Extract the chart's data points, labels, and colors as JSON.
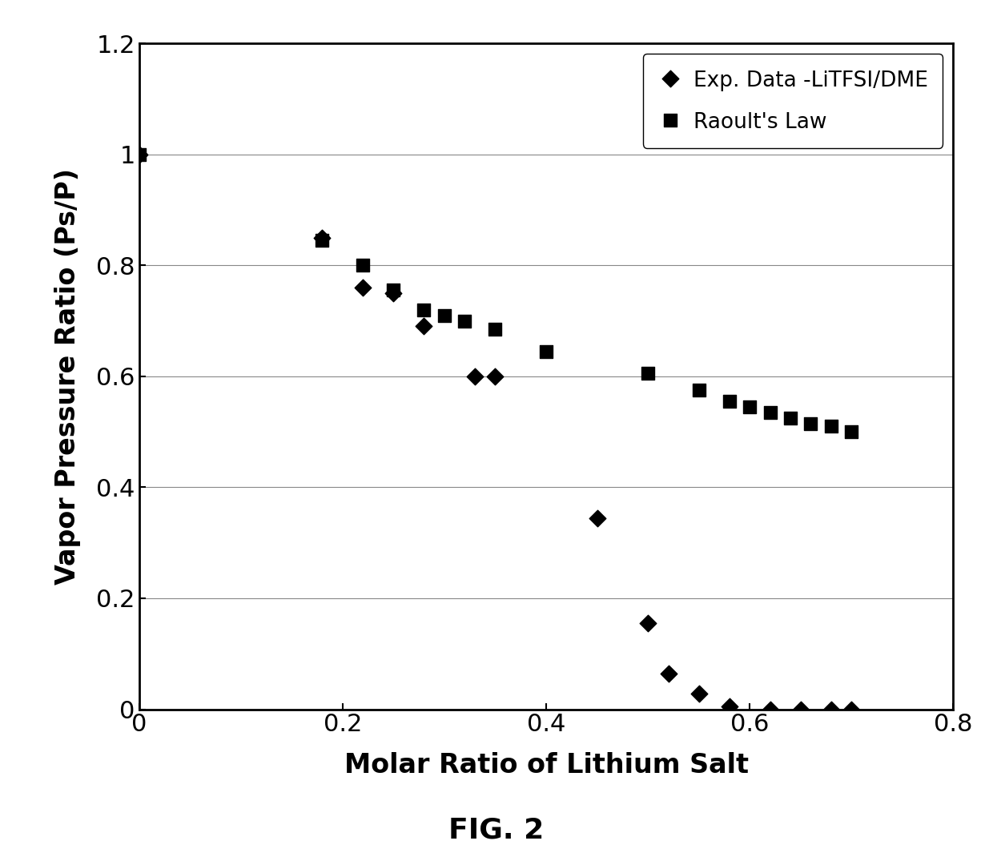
{
  "exp_x": [
    0.0,
    0.18,
    0.22,
    0.25,
    0.28,
    0.33,
    0.35,
    0.45,
    0.5,
    0.52,
    0.55,
    0.58,
    0.62,
    0.65,
    0.68,
    0.7
  ],
  "exp_y": [
    1.0,
    0.85,
    0.76,
    0.75,
    0.69,
    0.6,
    0.6,
    0.345,
    0.155,
    0.065,
    0.028,
    0.005,
    0.0,
    0.0,
    0.0,
    0.0
  ],
  "raoult_x": [
    0.0,
    0.18,
    0.22,
    0.25,
    0.28,
    0.3,
    0.32,
    0.35,
    0.4,
    0.5,
    0.55,
    0.58,
    0.6,
    0.62,
    0.64,
    0.66,
    0.68,
    0.7
  ],
  "raoult_y": [
    1.0,
    0.845,
    0.8,
    0.755,
    0.72,
    0.71,
    0.7,
    0.685,
    0.645,
    0.605,
    0.575,
    0.555,
    0.545,
    0.535,
    0.525,
    0.515,
    0.51,
    0.5
  ],
  "exp_label": "Exp. Data -LiTFSI/DME",
  "raoult_label": "Raoult's Law",
  "xlabel": "Molar Ratio of Lithium Salt",
  "ylabel": "Vapor Pressure Ratio (Ps/P)",
  "fig_label": "FIG. 2",
  "xlim": [
    0,
    0.8
  ],
  "ylim": [
    0,
    1.2
  ],
  "xticks": [
    0,
    0.2,
    0.4,
    0.6,
    0.8
  ],
  "yticks": [
    0,
    0.2,
    0.4,
    0.6,
    0.8,
    1.0,
    1.2
  ],
  "marker_color": "black",
  "bg_color": "#ffffff",
  "grid_color": "#888888"
}
